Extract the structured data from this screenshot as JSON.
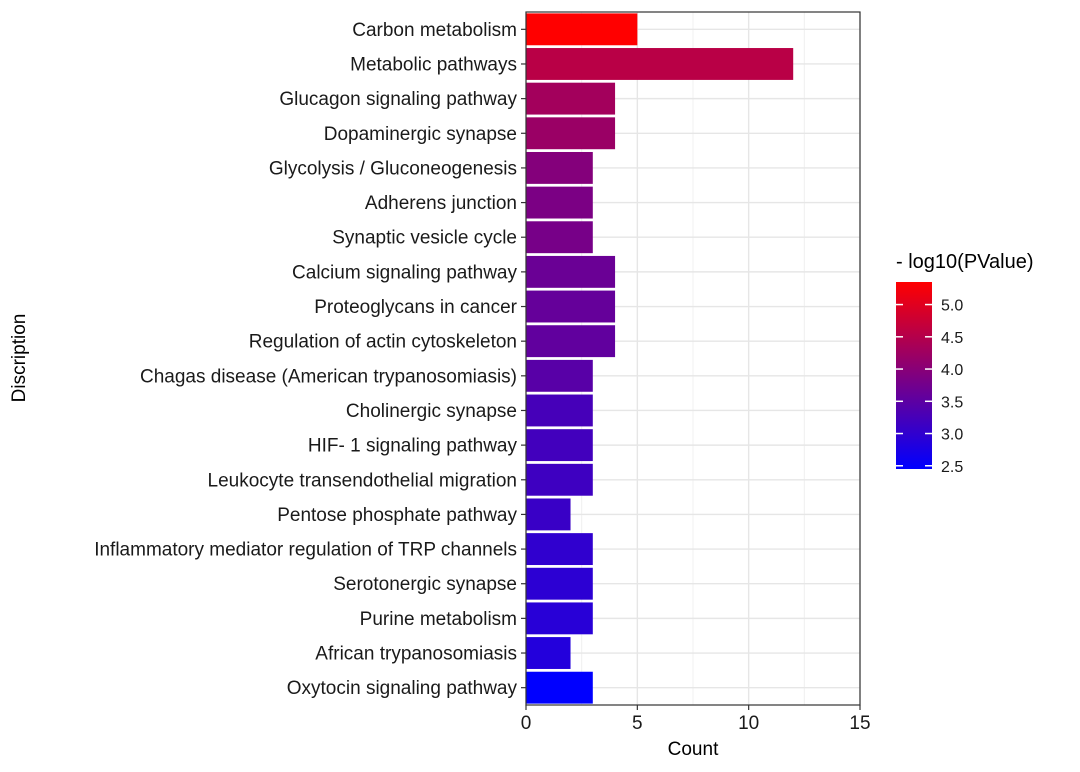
{
  "chart_data": {
    "type": "bar",
    "orientation": "horizontal",
    "xlabel": "Count",
    "ylabel": "Discription",
    "xlim": [
      0,
      15
    ],
    "xticks": [
      0,
      5,
      10,
      15
    ],
    "grid": true,
    "color_scale": {
      "title": "- log10(PValue)",
      "low_color": "#0000ff",
      "high_color": "#ff0000",
      "min": 2.45,
      "max": 5.35,
      "ticks": [
        5.0,
        4.5,
        4.0,
        3.5,
        3.0,
        2.5
      ],
      "tick_labels": [
        "5.0",
        "4.5",
        "4.0",
        "3.5",
        "3.0",
        "2.5"
      ]
    },
    "categories": [
      "Carbon metabolism",
      "Metabolic pathways",
      "Glucagon signaling pathway",
      "Dopaminergic synapse",
      "Glycolysis / Gluconeogenesis",
      "Adherens junction",
      "Synaptic vesicle cycle",
      "Calcium signaling pathway",
      "Proteoglycans in cancer",
      "Regulation of actin cytoskeleton",
      "Chagas disease (American trypanosomiasis)",
      "Cholinergic synapse",
      "HIF- 1 signaling pathway",
      "Leukocyte transendothelial migration",
      "Pentose phosphate pathway",
      "Inflammatory mediator regulation of TRP channels",
      "Serotonergic synapse",
      "Purine metabolism",
      "African trypanosomiasis",
      "Oxytocin signaling pathway"
    ],
    "values": [
      5,
      12,
      4,
      4,
      3,
      3,
      3,
      4,
      4,
      4,
      3,
      3,
      3,
      3,
      2,
      3,
      3,
      3,
      2,
      3
    ],
    "neg_log10_pvalue": [
      5.35,
      4.55,
      4.3,
      4.2,
      3.95,
      3.85,
      3.8,
      3.65,
      3.6,
      3.55,
      3.45,
      3.25,
      3.2,
      3.15,
      3.1,
      3.0,
      2.95,
      2.9,
      2.85,
      2.45
    ]
  }
}
